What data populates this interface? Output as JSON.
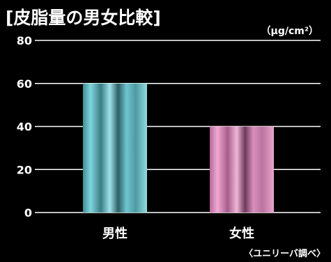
{
  "chart_data": {
    "type": "bar",
    "title": "[皮脂量の男女比較]",
    "unit_label": "（μg/cm²）",
    "source_label": "〈ユニリーバ調べ〉",
    "categories": [
      "男性",
      "女性"
    ],
    "series": [
      {
        "values": [
          60,
          40
        ]
      }
    ],
    "bar_colors": [
      "#5cc3cc",
      "#e08fbc"
    ],
    "ylim": [
      0,
      80
    ],
    "yticks": [
      0,
      20,
      40,
      60,
      80
    ],
    "grid": true,
    "xlabel": "",
    "ylabel": ""
  }
}
